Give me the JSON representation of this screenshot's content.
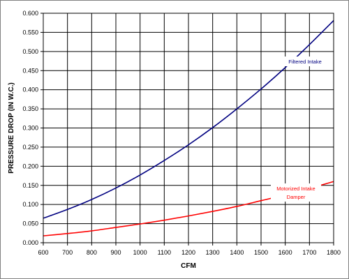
{
  "chart_data": {
    "type": "line",
    "xlabel": "CFM",
    "ylabel": "PRESSURE DROP (IN W.C.)",
    "xlim": [
      600,
      1800
    ],
    "ylim": [
      0,
      0.6
    ],
    "x_ticks": [
      "600",
      "700",
      "800",
      "900",
      "1000",
      "1100",
      "1200",
      "1300",
      "1400",
      "1500",
      "1600",
      "1700",
      "1800"
    ],
    "y_ticks": [
      "0.000",
      "0.050",
      "0.100",
      "0.150",
      "0.200",
      "0.250",
      "0.300",
      "0.350",
      "0.400",
      "0.450",
      "0.500",
      "0.550",
      "0.600"
    ],
    "grid": true,
    "series": [
      {
        "name": "Filtered Intake",
        "label_lines": [
          "Filtered Intake"
        ],
        "color": "#000080",
        "x": [
          600,
          700,
          800,
          900,
          1000,
          1100,
          1200,
          1300,
          1400,
          1500,
          1600,
          1700,
          1800
        ],
        "values": [
          0.064,
          0.087,
          0.113,
          0.143,
          0.177,
          0.215,
          0.256,
          0.301,
          0.35,
          0.402,
          0.458,
          0.518,
          0.581
        ]
      },
      {
        "name": "Motorized Intake Damper",
        "label_lines": [
          "Motorized Intake",
          "Damper"
        ],
        "color": "#ff0000",
        "x": [
          600,
          700,
          800,
          900,
          1000,
          1100,
          1200,
          1300,
          1400,
          1500,
          1600,
          1700,
          1800
        ],
        "values": [
          0.018,
          0.024,
          0.031,
          0.04,
          0.049,
          0.059,
          0.07,
          0.082,
          0.095,
          0.11,
          0.125,
          0.142,
          0.16
        ]
      }
    ]
  }
}
